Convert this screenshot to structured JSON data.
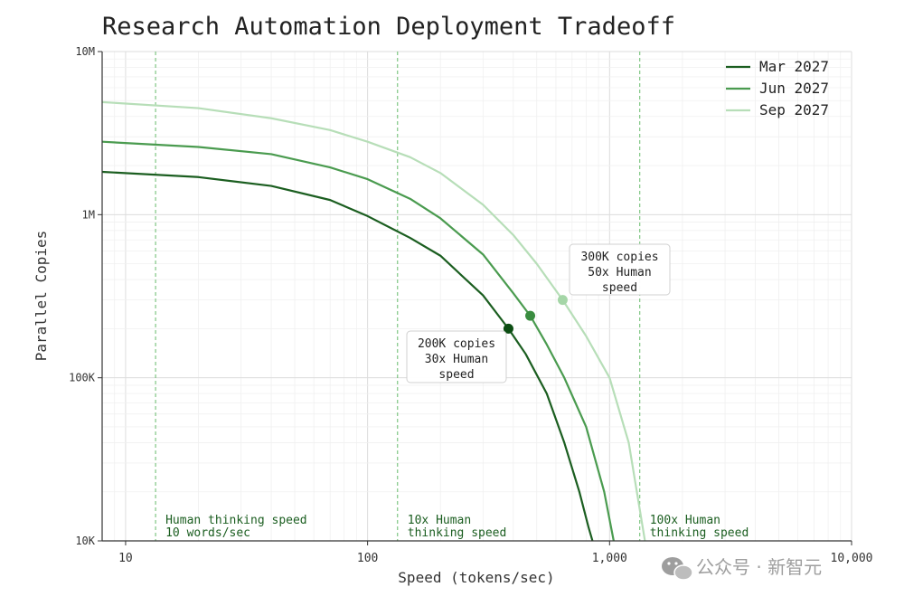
{
  "chart_data": {
    "type": "line",
    "title": "Research Automation Deployment Tradeoff",
    "xlabel": "Speed (tokens/sec)",
    "ylabel": "Parallel Copies",
    "xscale": "log",
    "yscale": "log",
    "xlim": [
      8,
      10000
    ],
    "ylim": [
      10000,
      10000000
    ],
    "grid": true,
    "legend_position": "top-right",
    "xticks": [
      {
        "value": 10,
        "label": "10"
      },
      {
        "value": 100,
        "label": "100"
      },
      {
        "value": 1000,
        "label": "1,000"
      },
      {
        "value": 10000,
        "label": "10,000"
      }
    ],
    "yticks": [
      {
        "value": 10000,
        "label": "10K"
      },
      {
        "value": 100000,
        "label": "100K"
      },
      {
        "value": 1000000,
        "label": "1M"
      },
      {
        "value": 10000000,
        "label": "10M"
      }
    ],
    "series": [
      {
        "name": "Mar 2027",
        "color": "#1b5e20",
        "x": [
          8,
          20,
          40,
          70,
          100,
          150,
          200,
          300,
          382,
          450,
          550,
          650,
          750,
          820,
          850
        ],
        "y": [
          1830000,
          1700000,
          1500000,
          1230000,
          980000,
          720000,
          560000,
          320000,
          200000,
          140000,
          80000,
          40000,
          20000,
          12000,
          10000
        ]
      },
      {
        "name": "Jun 2027",
        "color": "#4a9b4f",
        "x": [
          8,
          20,
          40,
          70,
          100,
          150,
          200,
          300,
          400,
          470,
          550,
          650,
          800,
          950,
          1040
        ],
        "y": [
          2800000,
          2600000,
          2350000,
          1950000,
          1650000,
          1250000,
          950000,
          570000,
          330000,
          240000,
          160000,
          100000,
          50000,
          20000,
          10000
        ]
      },
      {
        "name": "Sep 2027",
        "color": "#b7deb8",
        "x": [
          8,
          20,
          40,
          70,
          100,
          150,
          200,
          300,
          400,
          500,
          640,
          800,
          1000,
          1200,
          1400
        ],
        "y": [
          4900000,
          4500000,
          3900000,
          3300000,
          2800000,
          2250000,
          1800000,
          1150000,
          750000,
          500000,
          300000,
          180000,
          100000,
          40000,
          10000
        ]
      }
    ],
    "markers": [
      {
        "series": "Mar 2027",
        "x": 382,
        "y": 200000,
        "color": "#0b4d12"
      },
      {
        "series": "Jun 2027",
        "x": 470,
        "y": 240000,
        "color": "#3a8c40"
      },
      {
        "series": "Sep 2027",
        "x": 640,
        "y": 300000,
        "color": "#a5d6a7"
      }
    ],
    "vlines": [
      {
        "x": 13.3,
        "lines": [
          "Human thinking speed",
          "10 words/sec"
        ]
      },
      {
        "x": 133,
        "lines": [
          "10x Human",
          "thinking speed"
        ]
      },
      {
        "x": 1333,
        "lines": [
          "100x Human",
          "thinking speed"
        ]
      }
    ],
    "annotations": [
      {
        "lines": [
          "200K copies",
          "30x Human",
          "speed"
        ],
        "anchor": "Mar 2027"
      },
      {
        "lines": [
          "300K copies",
          "50x Human",
          "speed"
        ],
        "anchor": "Sep 2027"
      }
    ]
  },
  "watermark": {
    "text": "公众号 · 新智元"
  }
}
